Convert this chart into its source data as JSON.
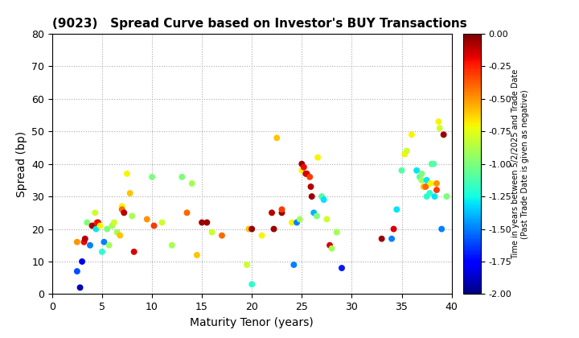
{
  "title": "(9023)   Spread Curve based on Investor's BUY Transactions",
  "xlabel": "Maturity Tenor (years)",
  "ylabel": "Spread (bp)",
  "colorbar_label": "Time in years between 5/2/2025 and Trade Date\n(Past Trade Date is given as negative)",
  "xlim": [
    0,
    40
  ],
  "ylim": [
    0,
    80
  ],
  "xticks": [
    0,
    5,
    10,
    15,
    20,
    25,
    30,
    35,
    40
  ],
  "yticks": [
    0,
    10,
    20,
    30,
    40,
    50,
    60,
    70,
    80
  ],
  "cmap_vmin": -2.0,
  "cmap_vmax": 0.0,
  "cticks": [
    0.0,
    -0.25,
    -0.5,
    -0.75,
    -1.0,
    -1.25,
    -1.5,
    -1.75,
    -2.0
  ],
  "ctick_labels": [
    "0.00",
    "-0.25",
    "-0.50",
    "-0.75",
    "-1.00",
    "-1.25",
    "-1.50",
    "-1.75",
    "-2.00"
  ],
  "marker_size": 22,
  "points": [
    [
      2.5,
      16,
      -0.5
    ],
    [
      2.5,
      7,
      -1.6
    ],
    [
      2.8,
      2,
      -1.9
    ],
    [
      3.0,
      10,
      -1.8
    ],
    [
      3.2,
      16,
      -0.2
    ],
    [
      3.3,
      17,
      -0.1
    ],
    [
      3.5,
      22,
      -1.0
    ],
    [
      3.8,
      15,
      -1.5
    ],
    [
      4.0,
      21,
      -0.1
    ],
    [
      4.2,
      21,
      -0.05
    ],
    [
      4.3,
      25,
      -0.8
    ],
    [
      4.4,
      20,
      -1.3
    ],
    [
      4.5,
      22,
      -0.3
    ],
    [
      4.6,
      22,
      -0.2
    ],
    [
      4.8,
      21,
      -0.7
    ],
    [
      5.0,
      13,
      -1.2
    ],
    [
      5.2,
      16,
      -1.5
    ],
    [
      5.5,
      20,
      -1.0
    ],
    [
      5.7,
      15,
      -0.9
    ],
    [
      6.0,
      21,
      -0.9
    ],
    [
      6.2,
      22,
      -0.8
    ],
    [
      6.5,
      19,
      -0.9
    ],
    [
      6.8,
      18,
      -0.6
    ],
    [
      7.0,
      27,
      -0.7
    ],
    [
      7.0,
      26,
      -0.4
    ],
    [
      7.2,
      25,
      -0.1
    ],
    [
      7.5,
      37,
      -0.7
    ],
    [
      7.8,
      31,
      -0.6
    ],
    [
      8.0,
      24,
      -0.9
    ],
    [
      8.2,
      13,
      -0.15
    ],
    [
      9.5,
      23,
      -0.5
    ],
    [
      10.0,
      36,
      -1.0
    ],
    [
      10.2,
      21,
      -0.3
    ],
    [
      11.0,
      22,
      -0.8
    ],
    [
      12.0,
      15,
      -0.9
    ],
    [
      13.0,
      36,
      -1.0
    ],
    [
      13.5,
      25,
      -0.4
    ],
    [
      14.0,
      34,
      -0.9
    ],
    [
      14.5,
      12,
      -0.6
    ],
    [
      15.0,
      22,
      -0.05
    ],
    [
      15.5,
      22,
      -0.05
    ],
    [
      16.0,
      19,
      -0.8
    ],
    [
      17.0,
      18,
      -0.4
    ],
    [
      19.5,
      9,
      -0.8
    ],
    [
      19.7,
      20,
      -0.6
    ],
    [
      20.0,
      3,
      -1.2
    ],
    [
      20.0,
      20,
      -0.05
    ],
    [
      21.0,
      18,
      -0.7
    ],
    [
      22.0,
      25,
      -0.1
    ],
    [
      22.2,
      20,
      -0.05
    ],
    [
      22.5,
      48,
      -0.6
    ],
    [
      23.0,
      25,
      -0.05
    ],
    [
      23.0,
      26,
      -0.3
    ],
    [
      24.0,
      22,
      -0.7
    ],
    [
      24.2,
      9,
      -1.5
    ],
    [
      24.5,
      22,
      -1.5
    ],
    [
      24.8,
      23,
      -0.9
    ],
    [
      25.0,
      38,
      -0.7
    ],
    [
      25.0,
      40,
      -0.05
    ],
    [
      25.2,
      39,
      -0.2
    ],
    [
      25.4,
      37,
      -0.1
    ],
    [
      25.5,
      37,
      -0.15
    ],
    [
      25.8,
      36,
      -0.3
    ],
    [
      25.9,
      33,
      -0.1
    ],
    [
      26.0,
      30,
      -0.05
    ],
    [
      26.2,
      25,
      -1.4
    ],
    [
      26.5,
      24,
      -1.0
    ],
    [
      26.6,
      42,
      -0.7
    ],
    [
      27.0,
      30,
      -1.1
    ],
    [
      27.2,
      29,
      -1.3
    ],
    [
      27.5,
      23,
      -0.8
    ],
    [
      27.8,
      15,
      -0.15
    ],
    [
      28.0,
      14,
      -0.9
    ],
    [
      28.5,
      19,
      -0.9
    ],
    [
      29.0,
      8,
      -1.7
    ],
    [
      33.0,
      17,
      -0.05
    ],
    [
      34.0,
      17,
      -1.5
    ],
    [
      34.2,
      20,
      -0.15
    ],
    [
      34.5,
      26,
      -1.3
    ],
    [
      35.0,
      38,
      -1.1
    ],
    [
      35.3,
      43,
      -0.7
    ],
    [
      35.5,
      44,
      -0.8
    ],
    [
      36.0,
      49,
      -0.7
    ],
    [
      36.5,
      38,
      -1.3
    ],
    [
      36.8,
      36,
      -1.1
    ],
    [
      37.0,
      37,
      -1.0
    ],
    [
      37.0,
      35,
      -0.9
    ],
    [
      37.2,
      33,
      -0.6
    ],
    [
      37.4,
      33,
      -0.4
    ],
    [
      37.5,
      35,
      -1.3
    ],
    [
      37.5,
      30,
      -1.2
    ],
    [
      37.8,
      31,
      -1.2
    ],
    [
      37.9,
      34,
      -0.7
    ],
    [
      38.0,
      40,
      -1.1
    ],
    [
      38.2,
      40,
      -1.1
    ],
    [
      38.3,
      30,
      -1.3
    ],
    [
      38.5,
      34,
      -0.5
    ],
    [
      38.5,
      32,
      -0.3
    ],
    [
      38.7,
      53,
      -0.7
    ],
    [
      38.8,
      51,
      -0.8
    ],
    [
      39.0,
      20,
      -1.5
    ],
    [
      39.2,
      49,
      -0.05
    ],
    [
      39.5,
      30,
      -1.0
    ]
  ]
}
